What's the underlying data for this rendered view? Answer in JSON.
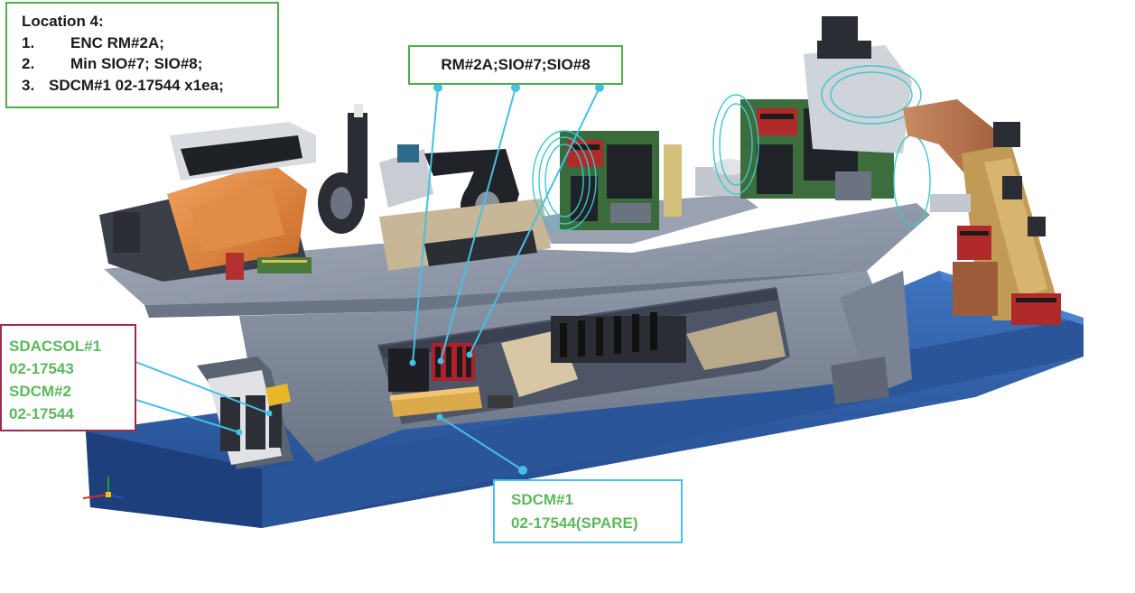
{
  "location_box": {
    "title": "Location 4:",
    "items": [
      {
        "num": "1.",
        "text": "ENC RM#2A;"
      },
      {
        "num": "2.",
        "text": "Min SIO#7; SIO#8;"
      },
      {
        "num": "3.",
        "text": "SDCM#1 02-17544 x1ea;"
      }
    ]
  },
  "rm_label": "RM#2A;SIO#7;SIO#8",
  "sdacsol_label": {
    "line1": "SDACSOL#1",
    "line2": "02-17543",
    "line3": "SDCM#2",
    "line4": "02-17544"
  },
  "sdcm1_label": {
    "line1": "SDCM#1",
    "line2": "02-17544(SPARE)"
  },
  "colors": {
    "green_border": "#4cb04c",
    "green_text": "#5cb85c",
    "maroon_border": "#9c2b4c",
    "cyan_leader": "#45c0e6",
    "base_blue": "#2f5fa7",
    "frame_gray": "#8a93a3"
  }
}
